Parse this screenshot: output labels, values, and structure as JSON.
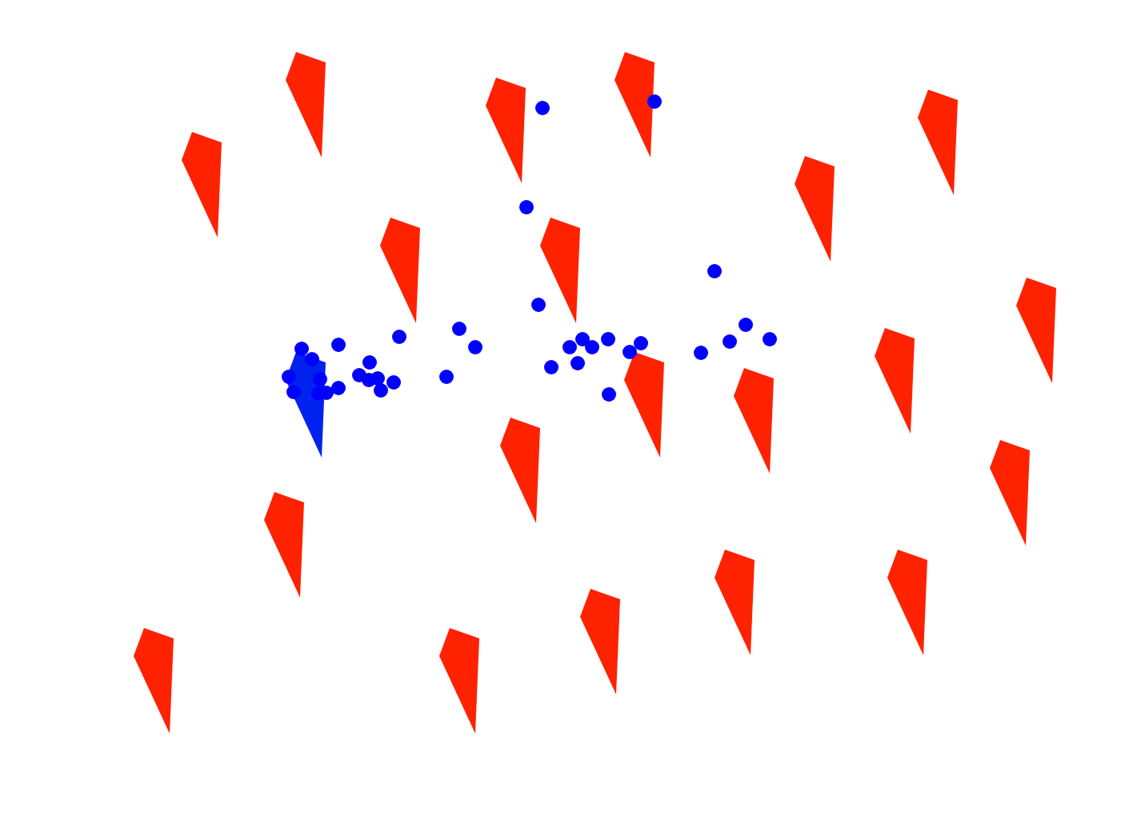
{
  "chart_data": {
    "type": "scatter",
    "xlim": [
      0,
      1401
    ],
    "ylim": [
      0,
      1050
    ],
    "tick_labels": false,
    "grid": false,
    "series": [
      {
        "color": "#ff2200",
        "marker": "kite",
        "x": [
          382,
          252,
          632,
          793,
          1172,
          500,
          700,
          1018,
          1295,
          1118,
          805,
          942,
          650,
          355,
          1262,
          192,
          574,
          750,
          918,
          1134
        ],
        "values": [
          920,
          820,
          888,
          920,
          873,
          713,
          713,
          790,
          638,
          575,
          545,
          525,
          463,
          370,
          435,
          200,
          200,
          249,
          298,
          298
        ]
      },
      {
        "color": "#0022ee",
        "marker": "kite",
        "x": [
          382
        ],
        "values": [
          545
        ]
      },
      {
        "color": "#0000ff",
        "marker": "circle",
        "x": [
          678,
          818,
          658,
          893,
          673,
          932,
          962,
          912,
          876,
          574,
          594,
          499,
          423,
          377,
          390,
          462,
          449,
          461,
          472,
          492,
          476,
          423,
          408,
          398,
          367,
          361,
          400,
          558,
          689,
          712,
          728,
          740,
          760,
          722,
          787,
          801,
          761
        ],
        "values": [
          915,
          923,
          791,
          711,
          669,
          644,
          626,
          623,
          609,
          639,
          616,
          629,
          619,
          614,
          601,
          597,
          581,
          575,
          577,
          572,
          562,
          565,
          559,
          558,
          560,
          579,
          576,
          579,
          591,
          616,
          626,
          616,
          626,
          596,
          610,
          621,
          557
        ]
      }
    ]
  }
}
